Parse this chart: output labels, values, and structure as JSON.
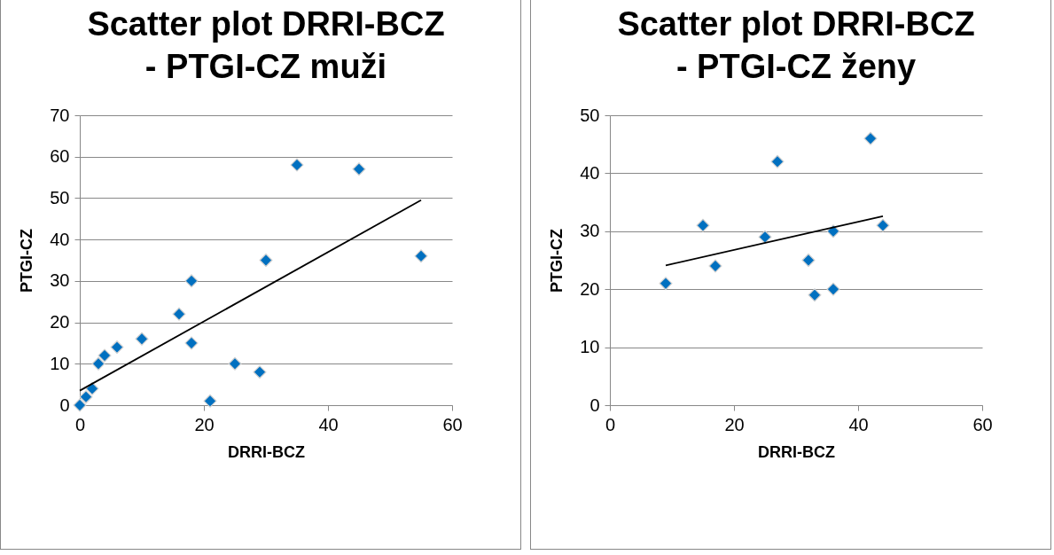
{
  "chart_data": [
    {
      "type": "scatter",
      "title": "Scatter plot DRRI-BCZ - PTGI-CZ muži",
      "xlabel": "DRRI-BCZ",
      "ylabel": "PTGI-CZ",
      "xlim": [
        0,
        60
      ],
      "xticks": [
        0,
        20,
        40,
        60
      ],
      "ylim": [
        0,
        70
      ],
      "yticks": [
        0,
        10,
        20,
        30,
        40,
        50,
        60,
        70
      ],
      "grid": "y",
      "marker": "diamond",
      "series": [
        {
          "color": "#0070c0",
          "x": [
            0,
            1,
            2,
            3,
            4,
            6,
            10,
            16,
            18,
            18,
            21,
            25,
            29,
            30,
            35,
            45,
            55
          ],
          "values": [
            0,
            2,
            4,
            10,
            12,
            14,
            16,
            22,
            30,
            15,
            1,
            10,
            8,
            35,
            58,
            57,
            36
          ]
        },
        {
          "type": "line",
          "marker": "none",
          "color": "#000000",
          "x": [
            0,
            55
          ],
          "values": [
            3.5,
            49.5
          ]
        }
      ]
    },
    {
      "type": "scatter",
      "title": "Scatter plot DRRI-BCZ - PTGI-CZ ženy",
      "xlabel": "DRRI-BCZ",
      "ylabel": "PTGI-CZ",
      "xlim": [
        0,
        60
      ],
      "xticks": [
        0,
        20,
        40,
        60
      ],
      "ylim": [
        0,
        50
      ],
      "yticks": [
        0,
        10,
        20,
        30,
        40,
        50
      ],
      "grid": "y",
      "marker": "diamond",
      "series": [
        {
          "color": "#0070c0",
          "x": [
            9,
            15,
            17,
            25,
            27,
            32,
            33,
            36,
            36,
            42,
            44
          ],
          "values": [
            21,
            31,
            24,
            29,
            42,
            25,
            19,
            30,
            20,
            46,
            31
          ]
        },
        {
          "type": "line",
          "marker": "none",
          "color": "#000000",
          "x": [
            9,
            44
          ],
          "values": [
            24.1,
            32.6
          ]
        }
      ]
    }
  ]
}
